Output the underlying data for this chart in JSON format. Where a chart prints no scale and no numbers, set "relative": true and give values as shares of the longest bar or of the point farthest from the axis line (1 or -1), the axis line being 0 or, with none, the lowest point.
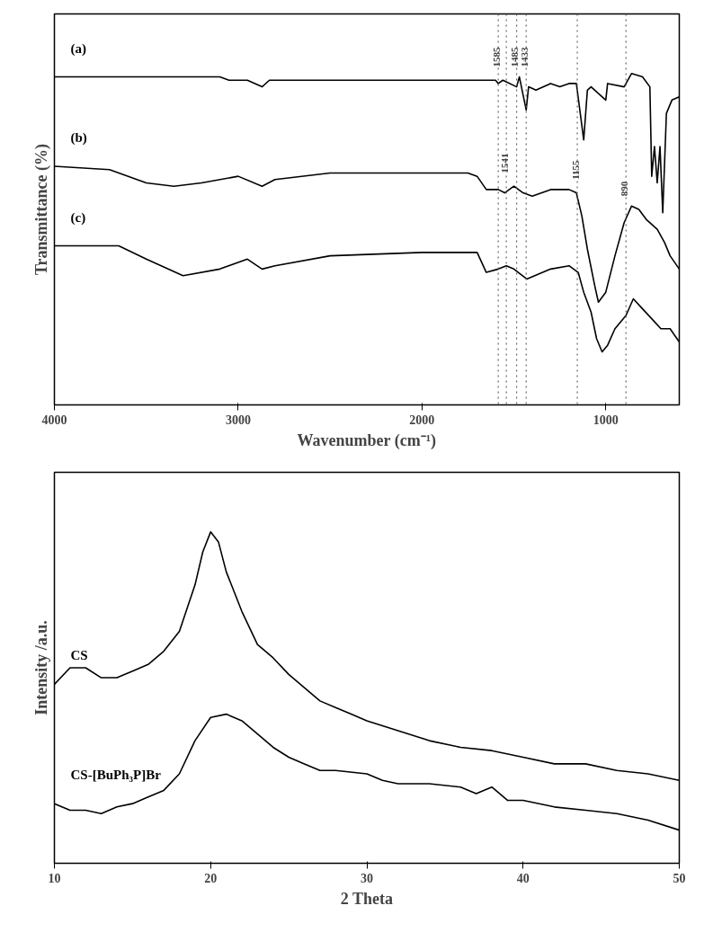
{
  "chart_data": [
    {
      "type": "line",
      "relative": true,
      "xlabel": "Wavenumber (cm⁻¹)",
      "ylabel": "Transmittance (%)",
      "xlim": [
        4000,
        600
      ],
      "xticks": [
        4000,
        3000,
        2000,
        1000
      ],
      "grid": false,
      "tick_labels": "x",
      "marker": "none",
      "line_style": "solid",
      "series": [
        {
          "name": "(a)",
          "color": "#000000",
          "x": [
            4000,
            3100,
            3050,
            2950,
            2870,
            2830,
            2500,
            2000,
            1700,
            1600,
            1585,
            1560,
            1485,
            1470,
            1433,
            1420,
            1380,
            1300,
            1250,
            1200,
            1160,
            1120,
            1100,
            1080,
            1000,
            990,
            900,
            860,
            800,
            760,
            750,
            735,
            720,
            705,
            690,
            670,
            640,
            600
          ],
          "values": [
            0.99,
            0.99,
            0.98,
            0.98,
            0.96,
            0.98,
            0.98,
            0.98,
            0.98,
            0.98,
            0.97,
            0.98,
            0.96,
            0.99,
            0.89,
            0.96,
            0.95,
            0.97,
            0.96,
            0.97,
            0.97,
            0.8,
            0.95,
            0.96,
            0.92,
            0.97,
            0.96,
            1.0,
            0.99,
            0.96,
            0.69,
            0.78,
            0.67,
            0.78,
            0.58,
            0.88,
            0.92,
            0.93
          ]
        },
        {
          "name": "(b)",
          "color": "#000000",
          "x": [
            4000,
            3700,
            3500,
            3350,
            3200,
            3000,
            2870,
            2800,
            2500,
            2000,
            1750,
            1700,
            1650,
            1585,
            1550,
            1500,
            1450,
            1400,
            1300,
            1200,
            1160,
            1130,
            1100,
            1060,
            1040,
            1000,
            950,
            900,
            860,
            820,
            780,
            720,
            680,
            650,
            600
          ],
          "values": [
            0.72,
            0.71,
            0.67,
            0.66,
            0.67,
            0.69,
            0.66,
            0.68,
            0.7,
            0.7,
            0.7,
            0.69,
            0.65,
            0.65,
            0.64,
            0.66,
            0.64,
            0.63,
            0.65,
            0.65,
            0.64,
            0.57,
            0.47,
            0.36,
            0.31,
            0.34,
            0.45,
            0.55,
            0.6,
            0.59,
            0.56,
            0.53,
            0.49,
            0.45,
            0.41
          ]
        },
        {
          "name": "(c)",
          "color": "#000000",
          "x": [
            4000,
            3650,
            3500,
            3300,
            3100,
            2950,
            2870,
            2800,
            2500,
            2000,
            1700,
            1650,
            1585,
            1541,
            1500,
            1430,
            1300,
            1200,
            1150,
            1120,
            1080,
            1050,
            1020,
            990,
            950,
            890,
            850,
            800,
            750,
            700,
            650,
            600
          ],
          "values": [
            0.48,
            0.48,
            0.44,
            0.39,
            0.41,
            0.44,
            0.41,
            0.42,
            0.45,
            0.46,
            0.46,
            0.4,
            0.41,
            0.42,
            0.41,
            0.38,
            0.41,
            0.42,
            0.4,
            0.34,
            0.28,
            0.2,
            0.16,
            0.18,
            0.23,
            0.27,
            0.32,
            0.29,
            0.26,
            0.23,
            0.23,
            0.19
          ]
        }
      ],
      "ref_lines": [
        {
          "axis": "x",
          "value": 1585,
          "line_style": "dotted",
          "color": "#666666"
        },
        {
          "axis": "x",
          "value": 1485,
          "line_style": "dotted",
          "color": "#666666"
        },
        {
          "axis": "x",
          "value": 1433,
          "line_style": "dotted",
          "color": "#666666"
        },
        {
          "axis": "x",
          "value": 1541,
          "line_style": "dotted",
          "color": "#666666"
        },
        {
          "axis": "x",
          "value": 1155,
          "line_style": "dotted",
          "color": "#666666"
        },
        {
          "axis": "x",
          "value": 890,
          "line_style": "dotted",
          "color": "#666666"
        }
      ],
      "annotations": [
        {
          "text": "1585",
          "x": 1585,
          "y": 1.02
        },
        {
          "text": "1485",
          "x": 1485,
          "y": 1.02
        },
        {
          "text": "1433",
          "x": 1433,
          "y": 1.02
        },
        {
          "text": "1541",
          "x": 1541,
          "y": 0.7
        },
        {
          "text": "1155",
          "x": 1155,
          "y": 0.68
        },
        {
          "text": "890",
          "x": 890,
          "y": 0.63
        }
      ]
    },
    {
      "type": "line",
      "relative": true,
      "xlabel": "2 Theta",
      "ylabel": "Intensity /a.u.",
      "xlim": [
        10,
        50
      ],
      "xticks": [
        10,
        20,
        30,
        40,
        50
      ],
      "grid": false,
      "tick_labels": "x",
      "marker": "none",
      "line_style": "solid",
      "series": [
        {
          "name": "CS",
          "color": "#000000",
          "x": [
            10,
            11,
            12,
            13,
            14,
            15,
            16,
            17,
            18,
            19,
            19.5,
            20,
            20.5,
            21,
            22,
            23,
            24,
            25,
            26,
            27,
            28,
            29,
            30,
            32,
            34,
            36,
            38,
            40,
            42,
            44,
            46,
            48,
            50
          ],
          "values": [
            0.54,
            0.59,
            0.59,
            0.56,
            0.56,
            0.58,
            0.6,
            0.64,
            0.7,
            0.84,
            0.94,
            1.0,
            0.97,
            0.88,
            0.76,
            0.66,
            0.62,
            0.57,
            0.53,
            0.49,
            0.47,
            0.45,
            0.43,
            0.4,
            0.37,
            0.35,
            0.34,
            0.32,
            0.3,
            0.3,
            0.28,
            0.27,
            0.25
          ]
        },
        {
          "name": "CS-[BuPh₃P]Br",
          "color": "#000000",
          "x": [
            10,
            11,
            12,
            13,
            14,
            15,
            16,
            17,
            18,
            19,
            20,
            21,
            22,
            23,
            24,
            25,
            26,
            27,
            28,
            30,
            31,
            32,
            34,
            36,
            37,
            38,
            39,
            40,
            42,
            44,
            46,
            48,
            50
          ],
          "values": [
            0.18,
            0.16,
            0.16,
            0.15,
            0.17,
            0.18,
            0.2,
            0.22,
            0.27,
            0.37,
            0.44,
            0.45,
            0.43,
            0.39,
            0.35,
            0.32,
            0.3,
            0.28,
            0.28,
            0.27,
            0.25,
            0.24,
            0.24,
            0.23,
            0.21,
            0.23,
            0.19,
            0.19,
            0.17,
            0.16,
            0.15,
            0.13,
            0.1
          ]
        }
      ]
    }
  ]
}
